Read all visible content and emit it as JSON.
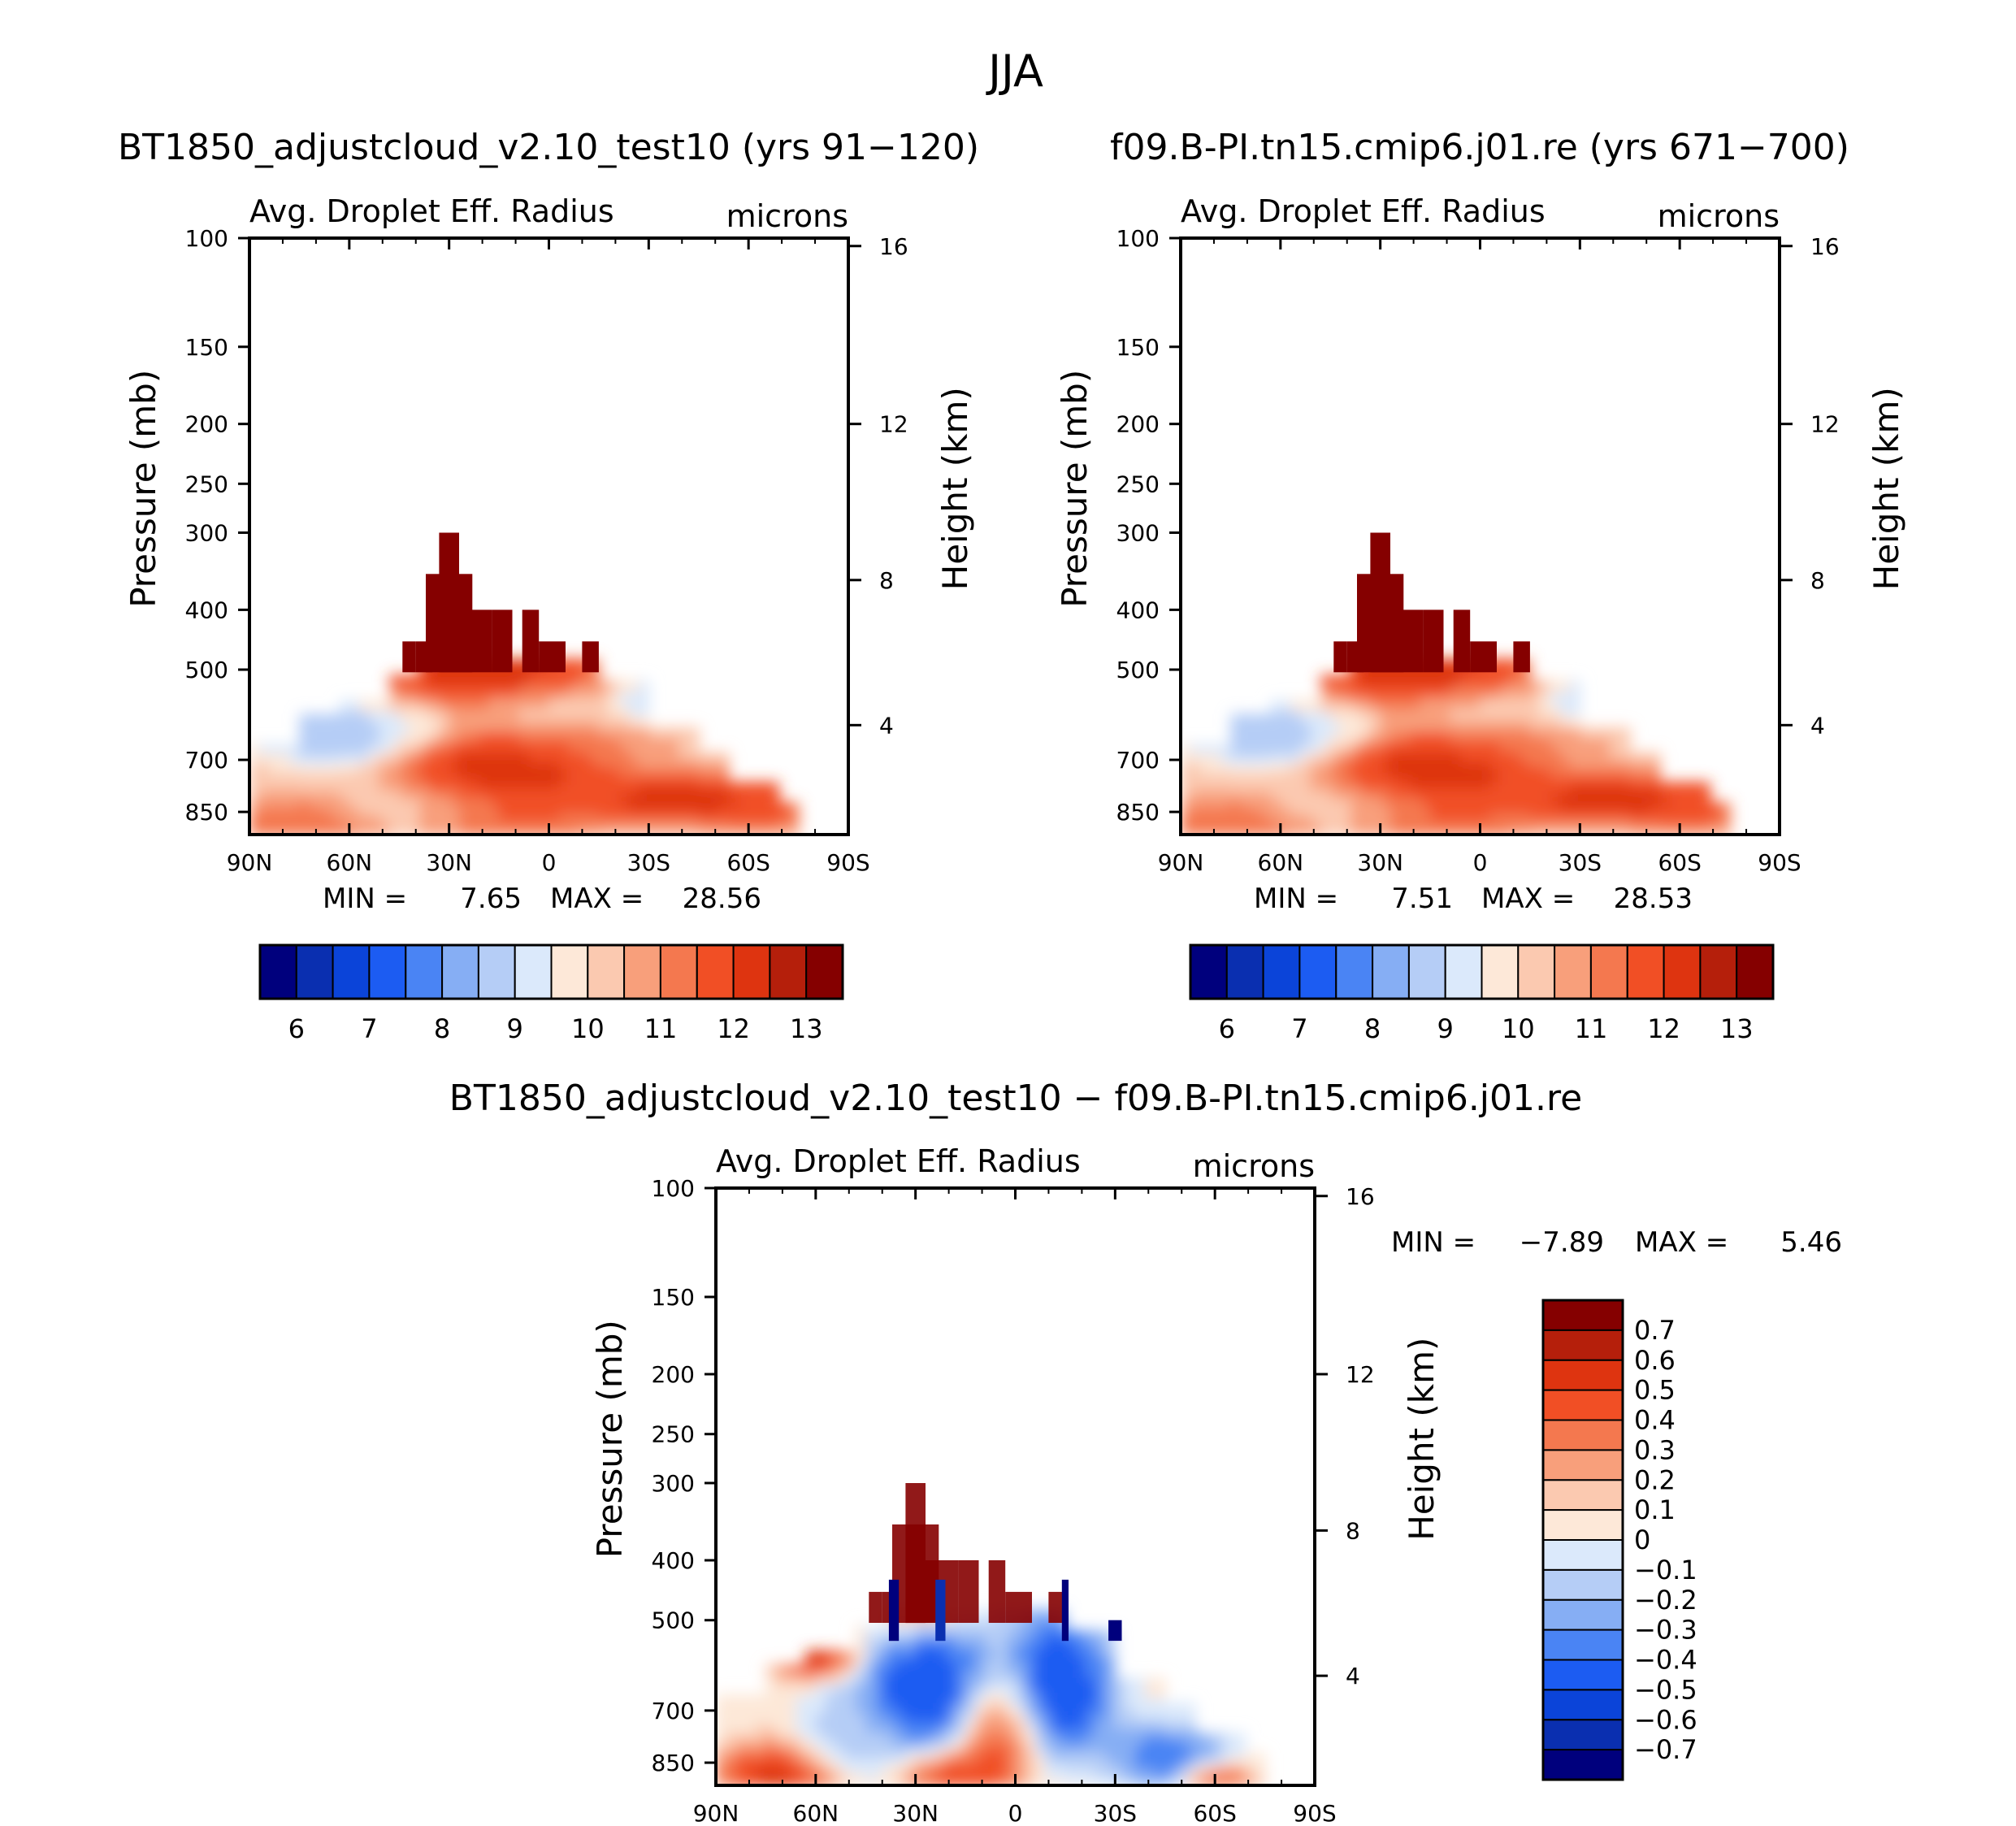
{
  "page_title": "JJA",
  "chart_data": [
    {
      "type": "heatmap",
      "title": "BT1850_adjustcloud_v2.10_test10 (yrs 91−120)",
      "subtitle_left": "Avg. Droplet Eff. Radius",
      "subtitle_right": "microns",
      "xlabel": "",
      "ylabel": "Pressure (mb)",
      "ylabel_right": "Height (km)",
      "x_ticks": [
        "90N",
        "60N",
        "30N",
        "0",
        "30S",
        "60S",
        "90S"
      ],
      "y_ticks": [
        "100",
        "150",
        "200",
        "250",
        "300",
        "400",
        "500",
        "700",
        "850"
      ],
      "y_ticks_right": [
        "16",
        "12",
        "8",
        "4"
      ],
      "min_label": "MIN =",
      "min_value": "7.65",
      "max_label": "MAX =",
      "max_value": "28.56",
      "colorbar_labels": [
        "6",
        "7",
        "8",
        "9",
        "10",
        "11",
        "12",
        "13"
      ],
      "colors": [
        "#00007d",
        "#0a2fb0",
        "#0b44d9",
        "#1c5cf2",
        "#4a84f4",
        "#86aef4",
        "#b5cdf6",
        "#dbe9fb",
        "#fde8d8",
        "#fbc9b0",
        "#f89f7b",
        "#f4784f",
        "#f14f25",
        "#de3410",
        "#b51f0b",
        "#850000"
      ]
    },
    {
      "type": "heatmap",
      "title": "f09.B-PI.tn15.cmip6.j01.re (yrs 671−700)",
      "subtitle_left": "Avg. Droplet Eff. Radius",
      "subtitle_right": "microns",
      "xlabel": "",
      "ylabel": "Pressure (mb)",
      "ylabel_right": "Height (km)",
      "x_ticks": [
        "90N",
        "60N",
        "30N",
        "0",
        "30S",
        "60S",
        "90S"
      ],
      "y_ticks": [
        "100",
        "150",
        "200",
        "250",
        "300",
        "400",
        "500",
        "700",
        "850"
      ],
      "y_ticks_right": [
        "16",
        "12",
        "8",
        "4"
      ],
      "min_label": "MIN =",
      "min_value": "7.51",
      "max_label": "MAX =",
      "max_value": "28.53",
      "colorbar_labels": [
        "6",
        "7",
        "8",
        "9",
        "10",
        "11",
        "12",
        "13"
      ],
      "colors": [
        "#00007d",
        "#0a2fb0",
        "#0b44d9",
        "#1c5cf2",
        "#4a84f4",
        "#86aef4",
        "#b5cdf6",
        "#dbe9fb",
        "#fde8d8",
        "#fbc9b0",
        "#f89f7b",
        "#f4784f",
        "#f14f25",
        "#de3410",
        "#b51f0b",
        "#850000"
      ]
    },
    {
      "type": "heatmap",
      "title": "BT1850_adjustcloud_v2.10_test10 − f09.B-PI.tn15.cmip6.j01.re",
      "subtitle_left": "Avg. Droplet Eff. Radius",
      "subtitle_right": "microns",
      "xlabel": "",
      "ylabel": "Pressure (mb)",
      "ylabel_right": "Height (km)",
      "x_ticks": [
        "90N",
        "60N",
        "30N",
        "0",
        "30S",
        "60S",
        "90S"
      ],
      "y_ticks": [
        "100",
        "150",
        "200",
        "250",
        "300",
        "400",
        "500",
        "700",
        "850"
      ],
      "y_ticks_right": [
        "16",
        "12",
        "8",
        "4"
      ],
      "min_label": "MIN =",
      "min_value": "−7.89",
      "max_label": "MAX =",
      "max_value": "5.46",
      "colorbar_labels": [
        "0.7",
        "0.6",
        "0.5",
        "0.4",
        "0.3",
        "0.2",
        "0.1",
        "0",
        "−0.1",
        "−0.2",
        "−0.3",
        "−0.4",
        "−0.5",
        "−0.6",
        "−0.7"
      ],
      "colors": [
        "#850000",
        "#b51f0b",
        "#de3410",
        "#f14f25",
        "#f4784f",
        "#f89f7b",
        "#fbc9b0",
        "#fde8d8",
        "#dbe9fb",
        "#b5cdf6",
        "#86aef4",
        "#4a84f4",
        "#1c5cf2",
        "#0b44d9",
        "#0a2fb0",
        "#00007d"
      ]
    }
  ]
}
